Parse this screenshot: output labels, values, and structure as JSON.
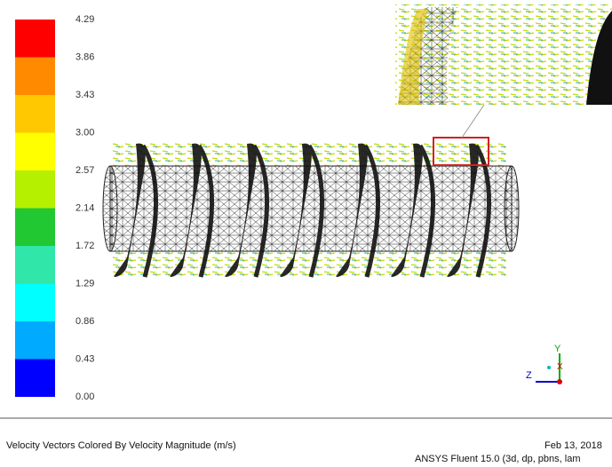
{
  "colorbar": {
    "labels": [
      "4.29",
      "3.86",
      "3.43",
      "3.00",
      "2.57",
      "2.14",
      "1.72",
      "1.29",
      "0.86",
      "0.43",
      "0.00"
    ]
  },
  "axes": {
    "y": "Y",
    "z": "Z",
    "x": "X"
  },
  "footer": {
    "title": "Velocity Vectors Colored By Velocity Magnitude (m/s)",
    "date": "Feb 13, 2018",
    "solver": "ANSYS Fluent 15.0 (3d, dp, pbns, lam"
  }
}
